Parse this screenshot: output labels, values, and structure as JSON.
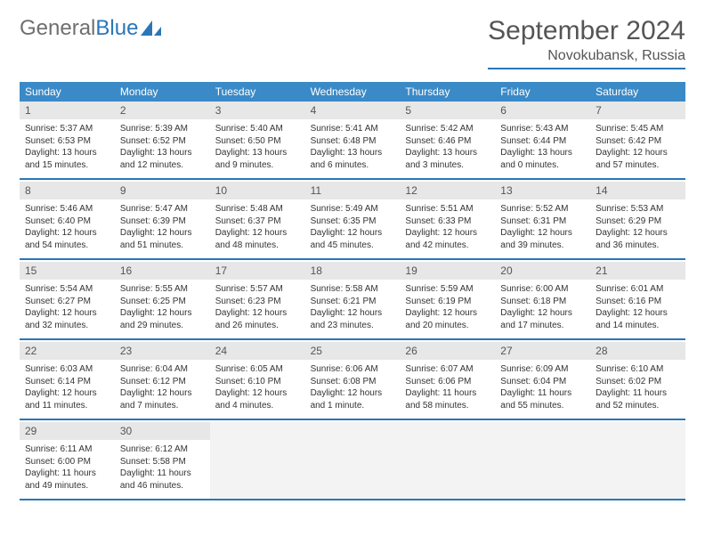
{
  "logo": {
    "text_gen": "General",
    "text_blue": "Blue"
  },
  "title": "September 2024",
  "location": "Novokubansk, Russia",
  "colors": {
    "header_bar": "#3a8ac7",
    "divider": "#2a76b8",
    "daynum_bg": "#e7e7e7",
    "empty_bg": "#f3f3f3",
    "text": "#333333",
    "muted": "#555555"
  },
  "days_of_week": [
    "Sunday",
    "Monday",
    "Tuesday",
    "Wednesday",
    "Thursday",
    "Friday",
    "Saturday"
  ],
  "weeks": [
    [
      {
        "n": "1",
        "sr": "5:37 AM",
        "ss": "6:53 PM",
        "dl": "13 hours and 15 minutes."
      },
      {
        "n": "2",
        "sr": "5:39 AM",
        "ss": "6:52 PM",
        "dl": "13 hours and 12 minutes."
      },
      {
        "n": "3",
        "sr": "5:40 AM",
        "ss": "6:50 PM",
        "dl": "13 hours and 9 minutes."
      },
      {
        "n": "4",
        "sr": "5:41 AM",
        "ss": "6:48 PM",
        "dl": "13 hours and 6 minutes."
      },
      {
        "n": "5",
        "sr": "5:42 AM",
        "ss": "6:46 PM",
        "dl": "13 hours and 3 minutes."
      },
      {
        "n": "6",
        "sr": "5:43 AM",
        "ss": "6:44 PM",
        "dl": "13 hours and 0 minutes."
      },
      {
        "n": "7",
        "sr": "5:45 AM",
        "ss": "6:42 PM",
        "dl": "12 hours and 57 minutes."
      }
    ],
    [
      {
        "n": "8",
        "sr": "5:46 AM",
        "ss": "6:40 PM",
        "dl": "12 hours and 54 minutes."
      },
      {
        "n": "9",
        "sr": "5:47 AM",
        "ss": "6:39 PM",
        "dl": "12 hours and 51 minutes."
      },
      {
        "n": "10",
        "sr": "5:48 AM",
        "ss": "6:37 PM",
        "dl": "12 hours and 48 minutes."
      },
      {
        "n": "11",
        "sr": "5:49 AM",
        "ss": "6:35 PM",
        "dl": "12 hours and 45 minutes."
      },
      {
        "n": "12",
        "sr": "5:51 AM",
        "ss": "6:33 PM",
        "dl": "12 hours and 42 minutes."
      },
      {
        "n": "13",
        "sr": "5:52 AM",
        "ss": "6:31 PM",
        "dl": "12 hours and 39 minutes."
      },
      {
        "n": "14",
        "sr": "5:53 AM",
        "ss": "6:29 PM",
        "dl": "12 hours and 36 minutes."
      }
    ],
    [
      {
        "n": "15",
        "sr": "5:54 AM",
        "ss": "6:27 PM",
        "dl": "12 hours and 32 minutes."
      },
      {
        "n": "16",
        "sr": "5:55 AM",
        "ss": "6:25 PM",
        "dl": "12 hours and 29 minutes."
      },
      {
        "n": "17",
        "sr": "5:57 AM",
        "ss": "6:23 PM",
        "dl": "12 hours and 26 minutes."
      },
      {
        "n": "18",
        "sr": "5:58 AM",
        "ss": "6:21 PM",
        "dl": "12 hours and 23 minutes."
      },
      {
        "n": "19",
        "sr": "5:59 AM",
        "ss": "6:19 PM",
        "dl": "12 hours and 20 minutes."
      },
      {
        "n": "20",
        "sr": "6:00 AM",
        "ss": "6:18 PM",
        "dl": "12 hours and 17 minutes."
      },
      {
        "n": "21",
        "sr": "6:01 AM",
        "ss": "6:16 PM",
        "dl": "12 hours and 14 minutes."
      }
    ],
    [
      {
        "n": "22",
        "sr": "6:03 AM",
        "ss": "6:14 PM",
        "dl": "12 hours and 11 minutes."
      },
      {
        "n": "23",
        "sr": "6:04 AM",
        "ss": "6:12 PM",
        "dl": "12 hours and 7 minutes."
      },
      {
        "n": "24",
        "sr": "6:05 AM",
        "ss": "6:10 PM",
        "dl": "12 hours and 4 minutes."
      },
      {
        "n": "25",
        "sr": "6:06 AM",
        "ss": "6:08 PM",
        "dl": "12 hours and 1 minute."
      },
      {
        "n": "26",
        "sr": "6:07 AM",
        "ss": "6:06 PM",
        "dl": "11 hours and 58 minutes."
      },
      {
        "n": "27",
        "sr": "6:09 AM",
        "ss": "6:04 PM",
        "dl": "11 hours and 55 minutes."
      },
      {
        "n": "28",
        "sr": "6:10 AM",
        "ss": "6:02 PM",
        "dl": "11 hours and 52 minutes."
      }
    ],
    [
      {
        "n": "29",
        "sr": "6:11 AM",
        "ss": "6:00 PM",
        "dl": "11 hours and 49 minutes."
      },
      {
        "n": "30",
        "sr": "6:12 AM",
        "ss": "5:58 PM",
        "dl": "11 hours and 46 minutes."
      },
      null,
      null,
      null,
      null,
      null
    ]
  ],
  "labels": {
    "sunrise_prefix": "Sunrise: ",
    "sunset_prefix": "Sunset: ",
    "daylight_prefix": "Daylight: "
  }
}
